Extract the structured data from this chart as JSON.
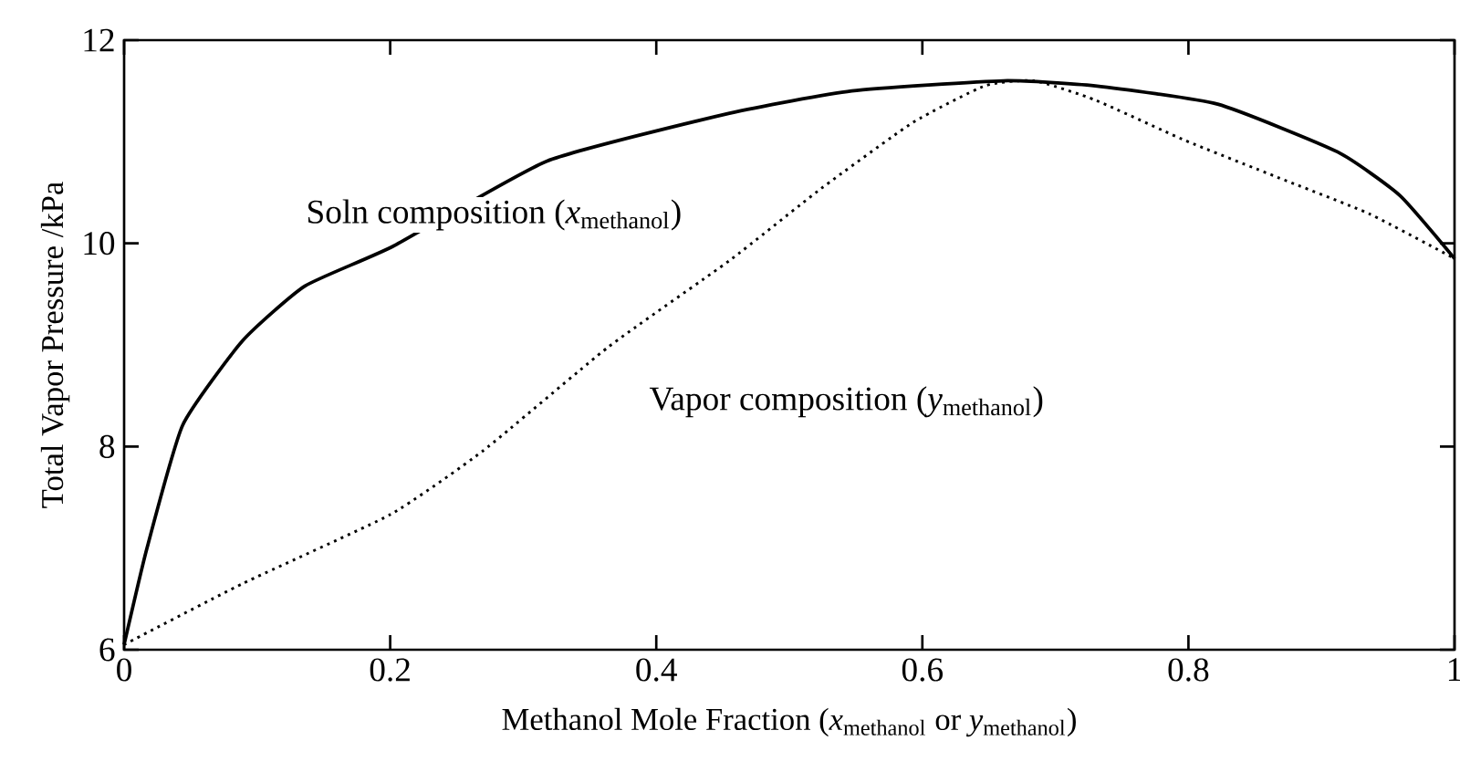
{
  "chart_data": {
    "type": "line",
    "xlabel": "Methanol Mole Fraction (*x*$_{methanol}$ or *y*$_{methanol}$)",
    "ylabel": "Total Vapor Pressure /kPa",
    "xlim": [
      0,
      1
    ],
    "ylim": [
      6,
      12
    ],
    "xticks": [
      0,
      0.2,
      0.4,
      0.6,
      0.8,
      1
    ],
    "yticks": [
      6,
      8,
      10,
      12
    ],
    "series": [
      {
        "name": "Soln composition (*x*$_{methanol}$)",
        "color": "#000000",
        "line_style": "solid",
        "x": [
          0,
          0.017,
          0.044,
          0.089,
          0.136,
          0.202,
          0.247,
          0.318,
          0.455,
          0.547,
          0.661,
          0.73,
          0.822,
          0.912,
          0.959,
          1
        ],
        "values": [
          6.05,
          6.99,
          8.21,
          9.04,
          9.58,
          9.97,
          null,
          10.81,
          11.28,
          11.5,
          11.6,
          11.55,
          11.37,
          10.9,
          10.47,
          9.85
        ]
      },
      {
        "name": "Vapor composition (*y*$_{methanol}$)",
        "color": "#000000",
        "line_style": "dotted",
        "x": [
          0,
          0.089,
          0.2,
          0.27,
          0.364,
          0.455,
          0.524,
          0.593,
          0.647,
          0.684,
          0.73,
          0.798,
          0.867,
          0.936,
          1
        ],
        "values": [
          6.05,
          6.65,
          7.33,
          7.96,
          8.98,
          9.83,
          10.54,
          11.19,
          11.55,
          11.6,
          11.41,
          11.01,
          10.65,
          10.29,
          9.85
        ]
      }
    ]
  }
}
